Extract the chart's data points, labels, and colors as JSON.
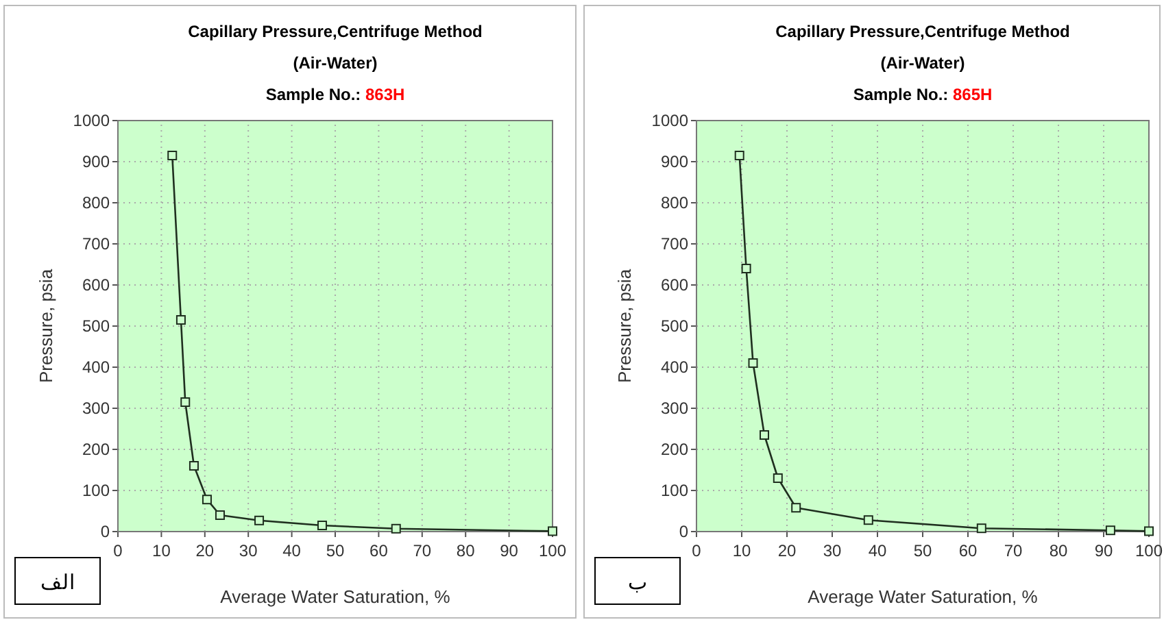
{
  "chart_data": [
    {
      "type": "line",
      "title": "Capillary Pressure,Centrifuge Method",
      "subtitle": "(Air-Water)",
      "annotations": [
        "Sample No.:",
        "863H",
        "الف"
      ],
      "xlabel": "Average Water Saturation, %",
      "ylabel": "Pressure, psia",
      "x": [
        12.5,
        14.5,
        15.5,
        17.5,
        20.5,
        23.5,
        32.5,
        47,
        64,
        100
      ],
      "series": [
        {
          "color": "#1f2f1f",
          "values": [
            915,
            515,
            315,
            160,
            78,
            40,
            27,
            15,
            7,
            1
          ]
        }
      ],
      "xlim": [
        0,
        100
      ],
      "ylim": [
        0,
        1000
      ],
      "xticks": [
        0,
        10,
        20,
        30,
        40,
        50,
        60,
        70,
        80,
        90,
        100
      ],
      "yticks": [
        0,
        100,
        200,
        300,
        400,
        500,
        600,
        700,
        800,
        900,
        1000
      ],
      "grid": true,
      "marker": "square"
    },
    {
      "type": "line",
      "title": "Capillary Pressure,Centrifuge Method",
      "subtitle": "(Air-Water)",
      "annotations": [
        "Sample No.:",
        "865H",
        "ب"
      ],
      "xlabel": "Average Water Saturation, %",
      "ylabel": "Pressure, psia",
      "x": [
        9.5,
        11,
        12.5,
        15,
        18,
        22,
        38,
        63,
        91.5,
        100
      ],
      "series": [
        {
          "color": "#1f2f1f",
          "values": [
            915,
            640,
            410,
            235,
            130,
            58,
            28,
            8,
            3,
            1
          ]
        }
      ],
      "xlim": [
        0,
        100
      ],
      "ylim": [
        0,
        1000
      ],
      "xticks": [
        0,
        10,
        20,
        30,
        40,
        50,
        60,
        70,
        80,
        90,
        100
      ],
      "yticks": [
        0,
        100,
        200,
        300,
        400,
        500,
        600,
        700,
        800,
        900,
        1000
      ],
      "grid": true,
      "marker": "square"
    }
  ]
}
